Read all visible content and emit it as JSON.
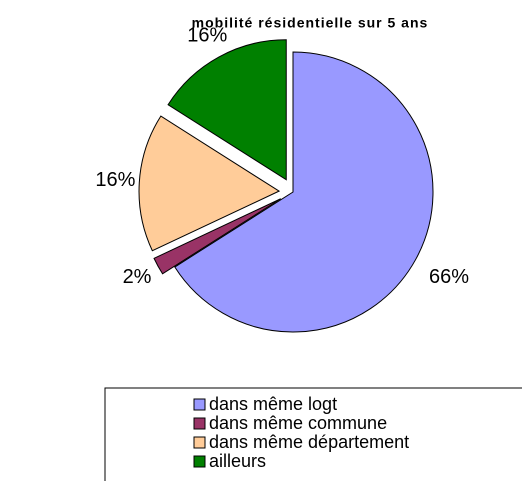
{
  "chart_data": {
    "type": "pie",
    "title": "mobilité résidentielle sur 5 ans",
    "categories": [
      "dans même logt",
      "dans même commune",
      "dans même département",
      "ailleurs"
    ],
    "values": [
      66,
      2,
      16,
      16
    ],
    "value_labels": [
      "66%",
      "2%",
      "16%",
      "16%"
    ],
    "colors": [
      "#9999ff",
      "#993366",
      "#ffcc99",
      "#008000"
    ],
    "legend": "bottom"
  }
}
